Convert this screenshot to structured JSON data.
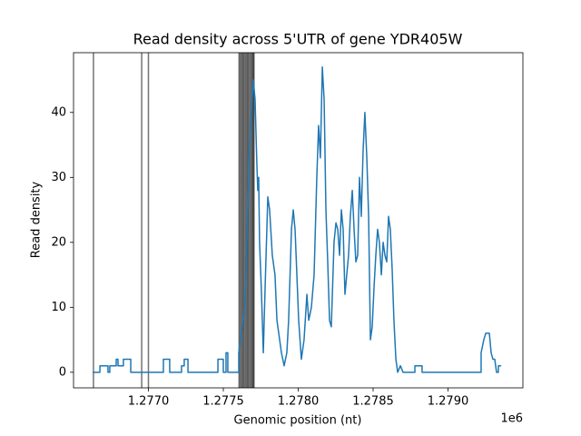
{
  "chart_data": {
    "type": "line",
    "title": "Read density across 5'UTR of gene YDR405W",
    "x_label": "Genomic position (nt)",
    "y_label": "Read density",
    "x_offset_text": "1e6",
    "xlim": [
      1276500,
      1279500
    ],
    "ylim": [
      -2.4,
      49.2
    ],
    "xticks": [
      {
        "value": 1277000,
        "label": "1.2770"
      },
      {
        "value": 1277500,
        "label": "1.2775"
      },
      {
        "value": 1278000,
        "label": "1.2780"
      },
      {
        "value": 1278500,
        "label": "1.2785"
      },
      {
        "value": 1279000,
        "label": "1.2790"
      }
    ],
    "yticks": [
      0,
      10,
      20,
      30,
      40
    ],
    "color": "#1f77b4",
    "x": [
      1276627,
      1276676,
      1276676,
      1276730,
      1276730,
      1276742,
      1276742,
      1276785,
      1276785,
      1276797,
      1276797,
      1276833,
      1276833,
      1276882,
      1276882,
      1277100,
      1277100,
      1277142,
      1277142,
      1277221,
      1277221,
      1277239,
      1277239,
      1277264,
      1277264,
      1277464,
      1277464,
      1277500,
      1277500,
      1277518,
      1277518,
      1277530,
      1277530,
      1277603,
      1277603,
      1277645,
      1277676,
      1277700,
      1277712,
      1277724,
      1277730,
      1277736,
      1277742,
      1277755,
      1277767,
      1277779,
      1277797,
      1277809,
      1277827,
      1277845,
      1277858,
      1277876,
      1277888,
      1277906,
      1277924,
      1277936,
      1277955,
      1277967,
      1277979,
      1277991,
      1278003,
      1278021,
      1278039,
      1278058,
      1278070,
      1278088,
      1278106,
      1278124,
      1278136,
      1278148,
      1278161,
      1278173,
      1278185,
      1278197,
      1278209,
      1278221,
      1278239,
      1278252,
      1278264,
      1278276,
      1278288,
      1278300,
      1278312,
      1278324,
      1278336,
      1278348,
      1278361,
      1278373,
      1278385,
      1278397,
      1278409,
      1278421,
      1278433,
      1278445,
      1278458,
      1278470,
      1278482,
      1278494,
      1278506,
      1278518,
      1278530,
      1278542,
      1278555,
      1278567,
      1278579,
      1278591,
      1278603,
      1278615,
      1278627,
      1278639,
      1278652,
      1278664,
      1278682,
      1278700,
      1278779,
      1278779,
      1278827,
      1278827,
      1279221,
      1279221,
      1279239,
      1279252,
      1279276,
      1279288,
      1279300,
      1279312,
      1279324,
      1279336,
      1279336,
      1279355
    ],
    "values": [
      0,
      0,
      1,
      1,
      0,
      0,
      1,
      1,
      2,
      2,
      1,
      1,
      2,
      2,
      0,
      0,
      2,
      2,
      0,
      0,
      1,
      1,
      2,
      2,
      0,
      0,
      2,
      2,
      0,
      0,
      3,
      3,
      0,
      0,
      3,
      10,
      35,
      45,
      42,
      32,
      28,
      30,
      20,
      12,
      3,
      13,
      27,
      25,
      18,
      15,
      8,
      5,
      3,
      1,
      3,
      8,
      22,
      25,
      22,
      15,
      8,
      2,
      5,
      12,
      8,
      10,
      15,
      30,
      38,
      33,
      47,
      42,
      25,
      17,
      8,
      7,
      20,
      23,
      22,
      18,
      25,
      22,
      12,
      15,
      18,
      24,
      28,
      22,
      17,
      18,
      30,
      24,
      34,
      40,
      33,
      24,
      5,
      7,
      13,
      18,
      22,
      20,
      15,
      20,
      18,
      17,
      24,
      22,
      16,
      8,
      2,
      0,
      1,
      0,
      0,
      1,
      1,
      0,
      0,
      3,
      5,
      6,
      6,
      3,
      2,
      2,
      0,
      0,
      1,
      1
    ],
    "vlines": {
      "color": "#000000",
      "x": [
        1276633,
        1276955,
        1277000,
        1277605,
        1277612,
        1277620,
        1277628,
        1277635,
        1277642,
        1277650,
        1277658,
        1277665,
        1277672,
        1277680,
        1277688,
        1277695,
        1277700,
        1277705
      ]
    }
  }
}
